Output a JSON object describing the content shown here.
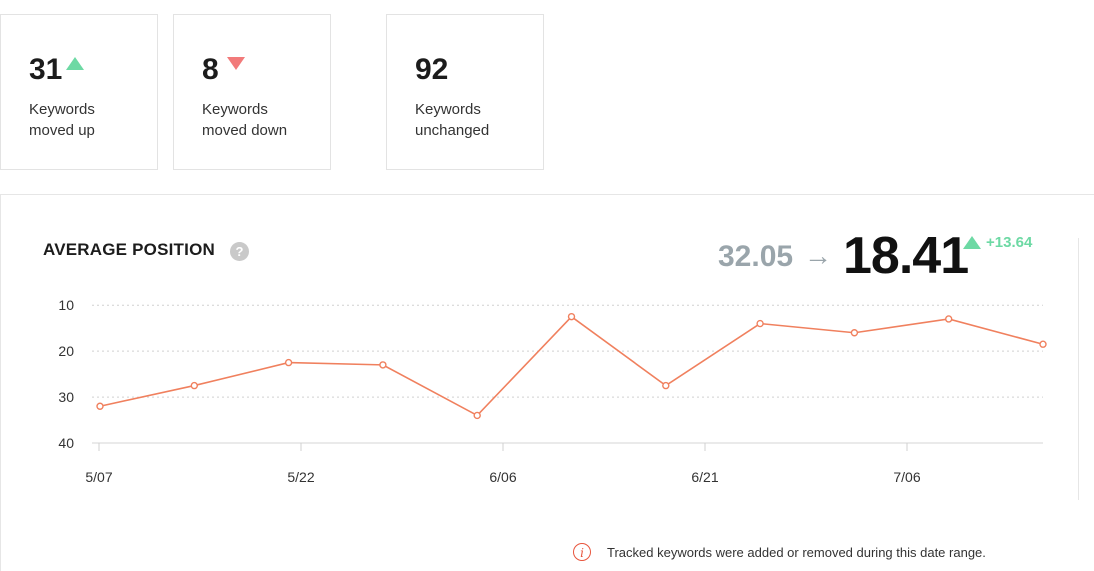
{
  "stats": [
    {
      "value": "31",
      "direction": "up",
      "label": "Keywords moved up"
    },
    {
      "value": "8",
      "direction": "down",
      "label": "Keywords moved down"
    },
    {
      "value": "92",
      "direction": "none",
      "label": "Keywords unchanged"
    }
  ],
  "chart": {
    "title": "AVERAGE POSITION",
    "help_symbol": "?",
    "position_from": "32.05",
    "arrow_symbol": "→",
    "position_to": "18.41",
    "delta": "+13.64"
  },
  "chart_data": {
    "type": "line",
    "title": "AVERAGE POSITION",
    "xlabel": "",
    "ylabel": "",
    "y_inverted": true,
    "ylim": [
      8,
      40
    ],
    "y_ticks": [
      "10",
      "20",
      "30",
      "40"
    ],
    "x_tick_labels": [
      "5/07",
      "5/22",
      "6/06",
      "6/21",
      "7/06"
    ],
    "x": [
      "5/07",
      "5/14",
      "5/21",
      "5/28",
      "6/04",
      "6/11",
      "6/18",
      "6/25",
      "7/02",
      "7/09",
      "7/16"
    ],
    "values": [
      32,
      27.5,
      22.5,
      23,
      34,
      12.5,
      27.5,
      14,
      16,
      13,
      18.5
    ],
    "line_color": "#f0805e",
    "grid": "horizontal-dotted",
    "legend": "none"
  },
  "notice": {
    "icon": "info-icon",
    "text": "Tracked keywords were added or removed during this date range."
  },
  "colors": {
    "up": "#6dd9a4",
    "down": "#f27a7a",
    "line": "#f0805e",
    "muted": "#9aa5ab"
  }
}
